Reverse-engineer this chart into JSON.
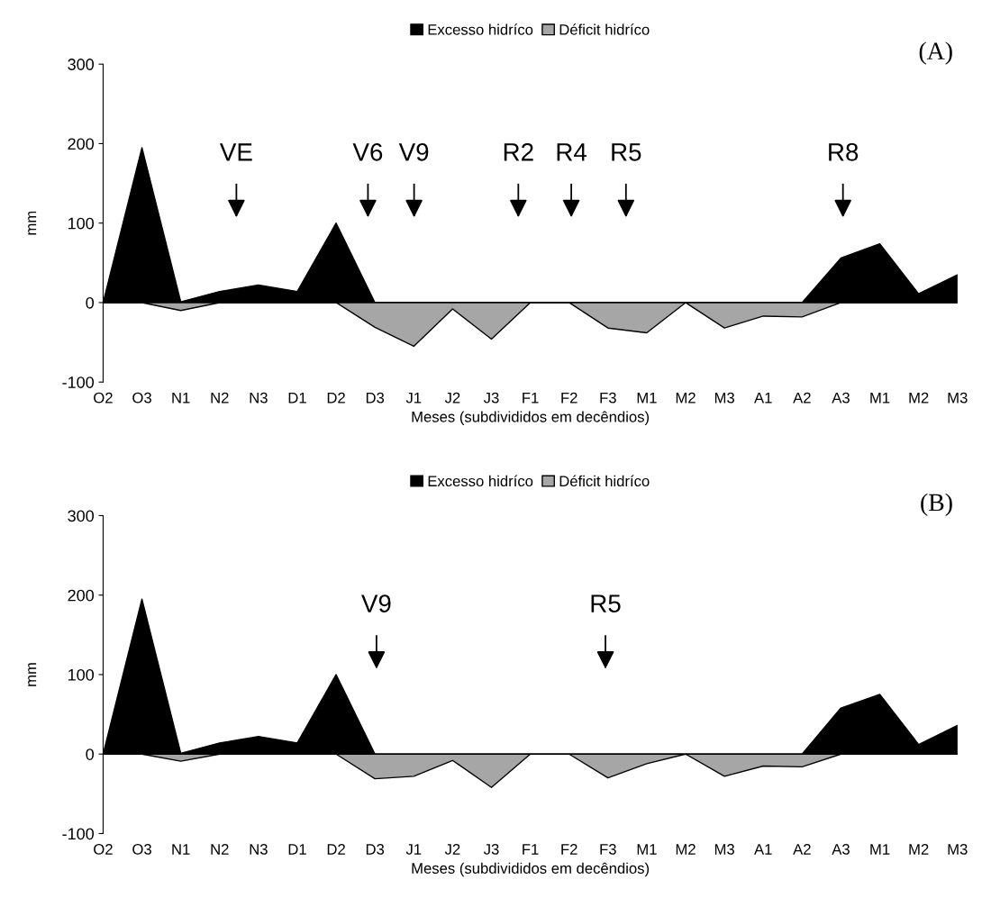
{
  "chart_data": [
    {
      "type": "area",
      "categories": [
        "O2",
        "O3",
        "N1",
        "N2",
        "N3",
        "D1",
        "D2",
        "D3",
        "J1",
        "J2",
        "J3",
        "F1",
        "F2",
        "F3",
        "M1",
        "M2",
        "M3",
        "A1",
        "A2",
        "A3",
        "M1",
        "M2",
        "M3"
      ],
      "series": [
        {
          "name": "Excesso hidríco",
          "color": "#000000",
          "values": [
            0,
            195,
            1,
            14,
            22,
            14,
            100,
            0,
            0,
            0,
            0,
            0,
            0,
            0,
            0,
            0,
            0,
            0,
            0,
            56,
            74,
            11,
            35
          ]
        },
        {
          "name": "Déficit hidríco",
          "color": "#a6a6a6",
          "values": [
            0,
            0,
            -10,
            0,
            0,
            0,
            0,
            -31,
            -55,
            -8,
            -46,
            0,
            0,
            -32,
            -38,
            0,
            -32,
            -17,
            -18,
            0,
            0,
            0,
            0
          ]
        }
      ],
      "xlabel": "Meses (subdivididos em decêndios)",
      "ylabel": "mm",
      "ylim": [
        -100,
        300
      ],
      "yticks": [
        -100,
        0,
        100,
        200,
        300
      ],
      "grid": false,
      "legend": "top",
      "annotations": [
        "(A)",
        "VE",
        "V6",
        "V9",
        "R2",
        "R4",
        "R5",
        "R8"
      ]
    },
    {
      "type": "area",
      "categories": [
        "O2",
        "O3",
        "N1",
        "N2",
        "N3",
        "D1",
        "D2",
        "D3",
        "J1",
        "J2",
        "J3",
        "F1",
        "F2",
        "F3",
        "M1",
        "M2",
        "M3",
        "A1",
        "A2",
        "A3",
        "M1",
        "M2",
        "M3"
      ],
      "series": [
        {
          "name": "Excesso hidríco",
          "color": "#000000",
          "values": [
            0,
            195,
            1,
            14,
            22,
            14,
            100,
            0,
            0,
            0,
            0,
            0,
            0,
            0,
            0,
            0,
            0,
            0,
            0,
            58,
            75,
            12,
            36
          ]
        },
        {
          "name": "Déficit hidríco",
          "color": "#a6a6a6",
          "values": [
            0,
            0,
            -9,
            0,
            0,
            0,
            0,
            -31,
            -28,
            -8,
            -42,
            0,
            0,
            -30,
            -12,
            0,
            -28,
            -15,
            -16,
            0,
            0,
            0,
            0
          ]
        }
      ],
      "xlabel": "Meses (subdivididos em decêndios)",
      "ylabel": "mm",
      "ylim": [
        -100,
        300
      ],
      "yticks": [
        -100,
        0,
        100,
        200,
        300
      ],
      "grid": false,
      "legend": "top",
      "annotations": [
        "(B)",
        "V9",
        "R5"
      ]
    }
  ]
}
